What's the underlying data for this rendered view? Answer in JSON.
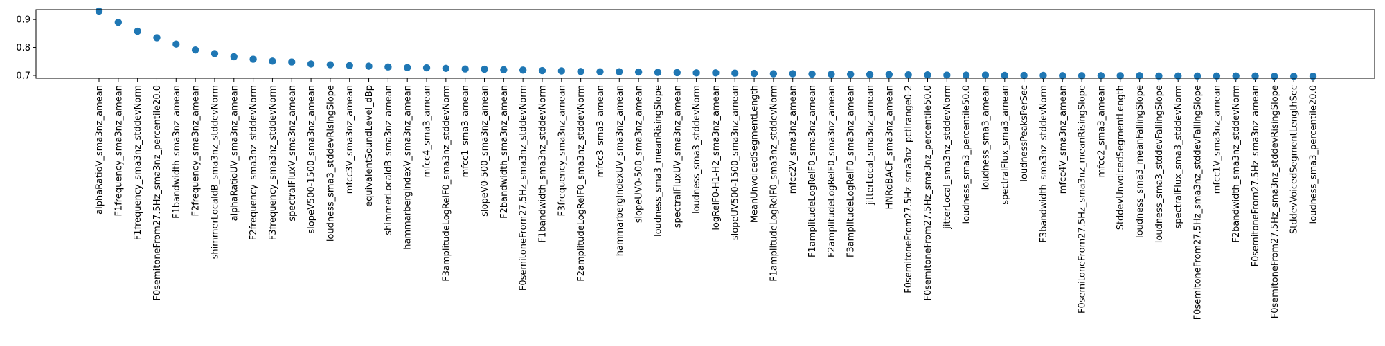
{
  "chart_data": {
    "type": "scatter",
    "title": "",
    "xlabel": "",
    "ylabel": "",
    "ylim": [
      0.69,
      0.935
    ],
    "yticks": [
      0.7,
      0.8,
      0.9
    ],
    "ytick_labels": [
      "0.7",
      "0.8",
      "0.9"
    ],
    "grid": false,
    "marker_color": "#1f77b4",
    "categories": [
      "alphaRatioV_sma3nz_amean",
      "F1frequency_sma3nz_amean",
      "F1frequency_sma3nz_stddevNorm",
      "F0semitoneFrom27.5Hz_sma3nz_percentile20.0",
      "F1bandwidth_sma3nz_amean",
      "F2frequency_sma3nz_amean",
      "shimmerLocaldB_sma3nz_stddevNorm",
      "alphaRatioUV_sma3nz_amean",
      "F2frequency_sma3nz_stddevNorm",
      "F3frequency_sma3nz_stddevNorm",
      "spectralFluxV_sma3nz_amean",
      "slopeV500-1500_sma3nz_amean",
      "loudness_sma3_stddevRisingSlope",
      "mfcc3V_sma3nz_amean",
      "equivalentSoundLevel_dBp",
      "shimmerLocaldB_sma3nz_amean",
      "hammarbergIndexV_sma3nz_amean",
      "mfcc4_sma3_amean",
      "F3amplitudeLogRelF0_sma3nz_stddevNorm",
      "mfcc1_sma3_amean",
      "slopeV0-500_sma3nz_amean",
      "F2bandwidth_sma3nz_amean",
      "F0semitoneFrom27.5Hz_sma3nz_stddevNorm",
      "F1bandwidth_sma3nz_stddevNorm",
      "F3frequency_sma3nz_amean",
      "F2amplitudeLogRelF0_sma3nz_stddevNorm",
      "mfcc3_sma3_amean",
      "hammarbergIndexUV_sma3nz_amean",
      "slopeUV0-500_sma3nz_amean",
      "loudness_sma3_meanRisingSlope",
      "spectralFluxUV_sma3nz_amean",
      "loudness_sma3_stddevNorm",
      "logRelF0-H1-H2_sma3nz_amean",
      "slopeUV500-1500_sma3nz_amean",
      "MeanUnvoicedSegmentLength",
      "F1amplitudeLogRelF0_sma3nz_stddevNorm",
      "mfcc2V_sma3nz_amean",
      "F1amplitudeLogRelF0_sma3nz_amean",
      "F2amplitudeLogRelF0_sma3nz_amean",
      "F3amplitudeLogRelF0_sma3nz_amean",
      "jitterLocal_sma3nz_amean",
      "HNRdBACF_sma3nz_amean",
      "F0semitoneFrom27.5Hz_sma3nz_pctlrange0-2",
      "F0semitoneFrom27.5Hz_sma3nz_percentile50.0",
      "jitterLocal_sma3nz_stddevNorm",
      "loudness_sma3_percentile50.0",
      "loudness_sma3_amean",
      "spectralFlux_sma3_amean",
      "loudnessPeaksPerSec",
      "F3bandwidth_sma3nz_stddevNorm",
      "mfcc4V_sma3nz_amean",
      "F0semitoneFrom27.5Hz_sma3nz_meanRisingSlope",
      "mfcc2_sma3_amean",
      "StddevUnvoicedSegmentLength",
      "loudness_sma3_meanFallingSlope",
      "loudness_sma3_stddevFallingSlope",
      "spectralFlux_sma3_stddevNorm",
      "F0semitoneFrom27.5Hz_sma3nz_stddevFallingSlope",
      "mfcc1V_sma3nz_amean",
      "F2bandwidth_sma3nz_stddevNorm",
      "F0semitoneFrom27.5Hz_sma3nz_amean",
      "F0semitoneFrom27.5Hz_sma3nz_stddevRisingSlope",
      "StddevVoicedSegmentLengthSec",
      "loudness_sma3_percentile20.0"
    ],
    "values": [
      0.93,
      0.89,
      0.858,
      0.835,
      0.812,
      0.791,
      0.778,
      0.767,
      0.758,
      0.751,
      0.748,
      0.741,
      0.738,
      0.735,
      0.733,
      0.73,
      0.728,
      0.727,
      0.725,
      0.723,
      0.722,
      0.72,
      0.719,
      0.717,
      0.716,
      0.714,
      0.713,
      0.713,
      0.712,
      0.711,
      0.71,
      0.709,
      0.709,
      0.708,
      0.707,
      0.706,
      0.706,
      0.705,
      0.704,
      0.704,
      0.703,
      0.703,
      0.702,
      0.702,
      0.701,
      0.701,
      0.701,
      0.7,
      0.7,
      0.7,
      0.699,
      0.699,
      0.699,
      0.699,
      0.699,
      0.698,
      0.698,
      0.698,
      0.698,
      0.698,
      0.698,
      0.697,
      0.697,
      0.697
    ]
  }
}
